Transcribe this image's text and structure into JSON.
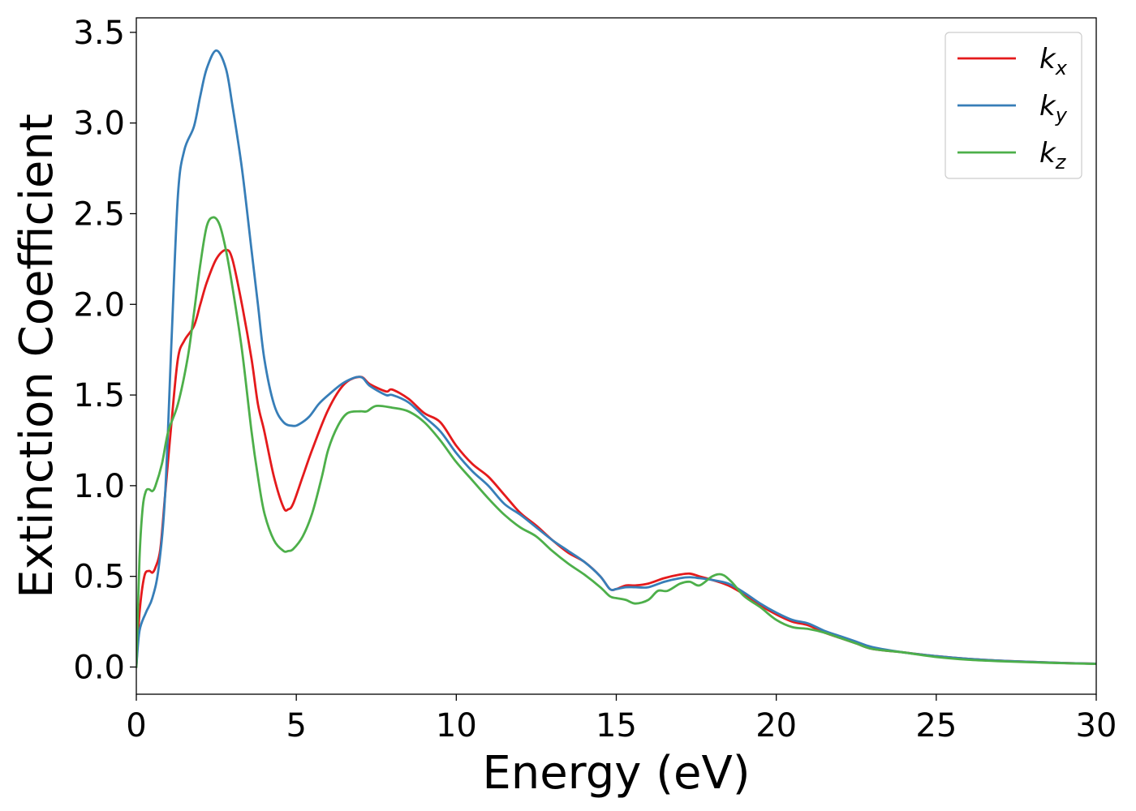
{
  "chart_data": {
    "type": "line",
    "xlabel": "Energy (eV)",
    "ylabel": "Extinction Coefficient",
    "xlim": [
      0,
      30
    ],
    "ylim": [
      -0.15,
      3.58
    ],
    "xticks": [
      0,
      5,
      10,
      15,
      20,
      25,
      30
    ],
    "yticks": [
      0.0,
      0.5,
      1.0,
      1.5,
      2.0,
      2.5,
      3.0,
      3.5
    ],
    "xtick_labels": [
      "0",
      "5",
      "10",
      "15",
      "20",
      "25",
      "30"
    ],
    "ytick_labels": [
      "0.0",
      "0.5",
      "1.0",
      "1.5",
      "2.0",
      "2.5",
      "3.0",
      "3.5"
    ],
    "grid": false,
    "legend_position": "top-right",
    "series": [
      {
        "name": "k_x",
        "legend_main": "k",
        "legend_sub": "x",
        "color": "#e41a1c",
        "x": [
          0,
          0.1,
          0.25,
          0.4,
          0.5,
          0.6,
          0.75,
          0.9,
          1.1,
          1.3,
          1.5,
          1.8,
          2.0,
          2.2,
          2.5,
          2.8,
          3.0,
          3.3,
          3.6,
          3.8,
          4.0,
          4.3,
          4.6,
          4.75,
          4.9,
          5.2,
          5.5,
          6.0,
          6.5,
          7.0,
          7.3,
          7.8,
          8.0,
          8.5,
          9.0,
          9.5,
          10.0,
          10.5,
          11.0,
          11.5,
          12.0,
          12.5,
          13.0,
          13.5,
          14.0,
          14.5,
          14.8,
          15.0,
          15.3,
          15.6,
          16.0,
          16.5,
          17.0,
          17.3,
          17.6,
          18.0,
          18.5,
          19.0,
          19.5,
          20.0,
          20.5,
          21.0,
          21.5,
          22.0,
          22.5,
          23.0,
          24.0,
          25.0,
          26.0,
          27.0,
          28.0,
          29.0,
          30.0
        ],
        "values": [
          0.0,
          0.3,
          0.5,
          0.53,
          0.52,
          0.55,
          0.65,
          0.95,
          1.35,
          1.7,
          1.8,
          1.88,
          2.0,
          2.12,
          2.25,
          2.3,
          2.25,
          2.0,
          1.7,
          1.45,
          1.3,
          1.05,
          0.88,
          0.87,
          0.9,
          1.05,
          1.2,
          1.42,
          1.56,
          1.6,
          1.56,
          1.52,
          1.53,
          1.48,
          1.4,
          1.35,
          1.22,
          1.12,
          1.05,
          0.95,
          0.85,
          0.78,
          0.7,
          0.63,
          0.58,
          0.5,
          0.43,
          0.43,
          0.45,
          0.45,
          0.46,
          0.49,
          0.51,
          0.515,
          0.5,
          0.48,
          0.45,
          0.4,
          0.34,
          0.29,
          0.25,
          0.23,
          0.19,
          0.16,
          0.13,
          0.1,
          0.08,
          0.06,
          0.045,
          0.035,
          0.028,
          0.022,
          0.018
        ]
      },
      {
        "name": "k_y",
        "legend_main": "k",
        "legend_sub": "y",
        "color": "#377eb8",
        "x": [
          0,
          0.1,
          0.3,
          0.5,
          0.7,
          0.9,
          1.1,
          1.3,
          1.5,
          1.8,
          2.0,
          2.2,
          2.5,
          2.8,
          3.0,
          3.3,
          3.6,
          3.8,
          4.0,
          4.3,
          4.6,
          4.9,
          5.1,
          5.4,
          5.7,
          6.0,
          6.5,
          7.0,
          7.3,
          7.8,
          8.0,
          8.5,
          9.0,
          9.5,
          10.0,
          10.5,
          11.0,
          11.5,
          12.0,
          12.5,
          13.0,
          13.5,
          14.0,
          14.5,
          14.8,
          15.0,
          15.3,
          15.6,
          16.0,
          16.5,
          17.0,
          17.3,
          17.6,
          18.0,
          18.5,
          19.0,
          19.5,
          20.0,
          20.5,
          21.0,
          21.5,
          22.0,
          22.5,
          23.0,
          24.0,
          25.0,
          26.0,
          27.0,
          28.0,
          29.0,
          30.0
        ],
        "values": [
          0.0,
          0.2,
          0.3,
          0.38,
          0.55,
          0.95,
          1.8,
          2.6,
          2.85,
          2.98,
          3.15,
          3.3,
          3.4,
          3.3,
          3.1,
          2.75,
          2.3,
          2.0,
          1.7,
          1.45,
          1.35,
          1.33,
          1.34,
          1.38,
          1.45,
          1.5,
          1.57,
          1.6,
          1.55,
          1.5,
          1.5,
          1.46,
          1.38,
          1.3,
          1.18,
          1.08,
          1.0,
          0.9,
          0.84,
          0.77,
          0.7,
          0.64,
          0.58,
          0.5,
          0.43,
          0.43,
          0.44,
          0.44,
          0.44,
          0.47,
          0.49,
          0.495,
          0.49,
          0.48,
          0.46,
          0.41,
          0.35,
          0.3,
          0.26,
          0.24,
          0.2,
          0.17,
          0.14,
          0.11,
          0.08,
          0.06,
          0.045,
          0.035,
          0.028,
          0.022,
          0.018
        ]
      },
      {
        "name": "k_z",
        "legend_main": "k",
        "legend_sub": "z",
        "color": "#4daf4a",
        "x": [
          0,
          0.1,
          0.2,
          0.3,
          0.4,
          0.5,
          0.6,
          0.8,
          1.0,
          1.3,
          1.6,
          1.8,
          2.0,
          2.2,
          2.4,
          2.6,
          2.8,
          3.0,
          3.3,
          3.6,
          3.8,
          4.0,
          4.3,
          4.6,
          4.75,
          4.9,
          5.2,
          5.5,
          5.8,
          6.0,
          6.3,
          6.6,
          7.0,
          7.2,
          7.5,
          8.0,
          8.5,
          9.0,
          9.5,
          10.0,
          10.5,
          11.0,
          11.5,
          12.0,
          12.5,
          13.0,
          13.5,
          14.0,
          14.5,
          14.8,
          15.0,
          15.3,
          15.6,
          16.0,
          16.3,
          16.6,
          17.0,
          17.3,
          17.6,
          18.0,
          18.3,
          18.6,
          19.0,
          19.5,
          20.0,
          20.5,
          21.0,
          21.5,
          22.0,
          22.5,
          23.0,
          24.0,
          25.0,
          26.0,
          27.0,
          28.0,
          29.0,
          30.0
        ],
        "values": [
          0.0,
          0.6,
          0.88,
          0.97,
          0.98,
          0.97,
          1.0,
          1.12,
          1.3,
          1.45,
          1.7,
          1.95,
          2.22,
          2.43,
          2.48,
          2.44,
          2.3,
          2.1,
          1.75,
          1.3,
          1.05,
          0.85,
          0.7,
          0.64,
          0.64,
          0.65,
          0.72,
          0.85,
          1.05,
          1.2,
          1.33,
          1.4,
          1.41,
          1.41,
          1.44,
          1.43,
          1.41,
          1.35,
          1.25,
          1.13,
          1.03,
          0.93,
          0.84,
          0.77,
          0.72,
          0.64,
          0.57,
          0.51,
          0.44,
          0.39,
          0.38,
          0.37,
          0.35,
          0.37,
          0.42,
          0.42,
          0.46,
          0.47,
          0.45,
          0.5,
          0.51,
          0.47,
          0.39,
          0.33,
          0.26,
          0.22,
          0.21,
          0.19,
          0.16,
          0.13,
          0.1,
          0.08,
          0.055,
          0.04,
          0.032,
          0.026,
          0.021,
          0.017
        ]
      }
    ]
  }
}
